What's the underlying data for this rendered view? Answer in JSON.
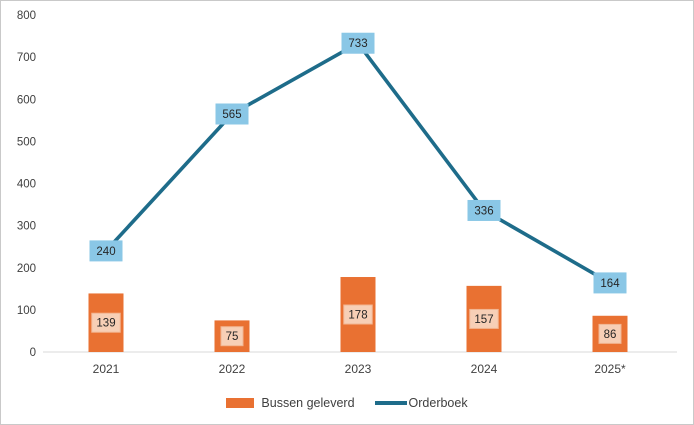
{
  "chart_data": {
    "type": "combo",
    "title": "",
    "categories": [
      "2021",
      "2022",
      "2023",
      "2024",
      "2025*"
    ],
    "series": [
      {
        "name": "Bussen geleverd",
        "type": "bar",
        "values": [
          139,
          75,
          178,
          157,
          86
        ],
        "color": "#E97132",
        "label_bg": "#F7CFB6",
        "label_border": "#F2B591"
      },
      {
        "name": "Orderboek",
        "type": "line",
        "values": [
          240,
          565,
          733,
          336,
          164
        ],
        "color": "#1E6C8A",
        "label_bg": "#8AC7E6"
      }
    ],
    "xlabel": "",
    "ylabel": "",
    "ylim": [
      0,
      800
    ],
    "yticks": [
      0,
      100,
      200,
      300,
      400,
      500,
      600,
      700,
      800
    ],
    "grid": false,
    "legend_position": "bottom"
  },
  "colors": {
    "axis_text": "#404040",
    "label_text": "#262626",
    "baseline": "#D9D9D9",
    "background": "#FFFFFF",
    "frame_border": "#C9C9C9"
  }
}
